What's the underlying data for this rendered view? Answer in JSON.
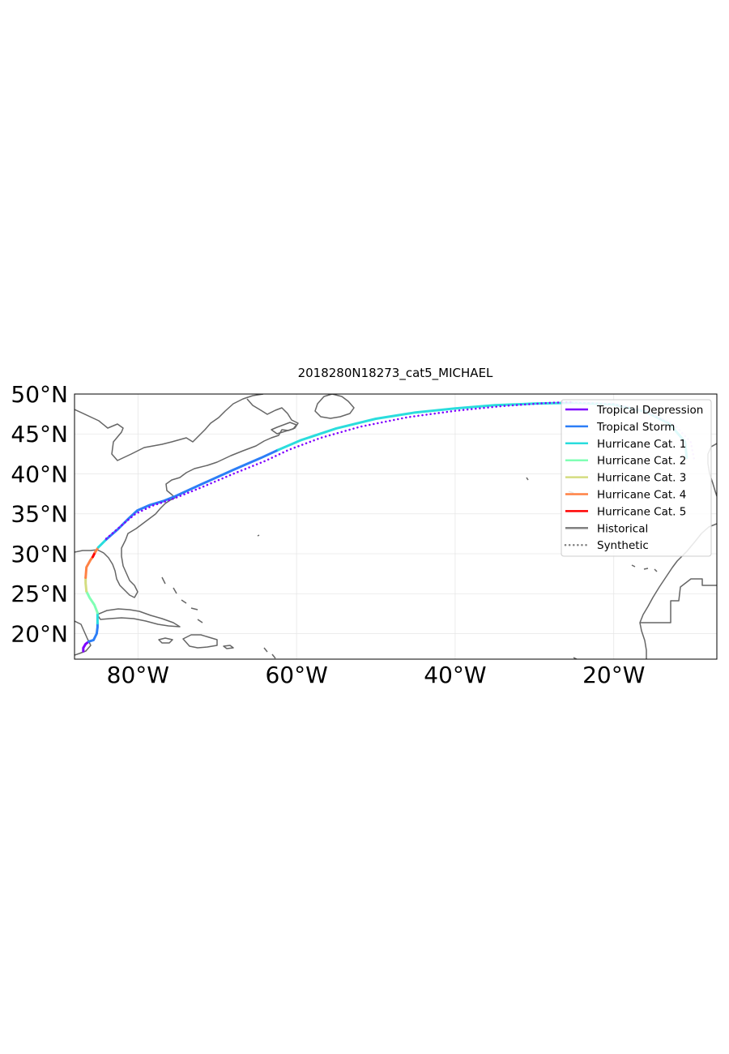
{
  "title": "2018280N18273_cat5_MICHAEL",
  "map": {
    "lon_range": [
      -88,
      -7
    ],
    "lat_range": [
      16.8,
      50
    ],
    "x_ticks": [
      {
        "lon": -80,
        "label": "80°W"
      },
      {
        "lon": -60,
        "label": "60°W"
      },
      {
        "lon": -40,
        "label": "40°W"
      },
      {
        "lon": -20,
        "label": "20°W"
      }
    ],
    "y_ticks": [
      {
        "lat": 50,
        "label": "50°N"
      },
      {
        "lat": 45,
        "label": "45°N"
      },
      {
        "lat": 40,
        "label": "40°N"
      },
      {
        "lat": 35,
        "label": "35°N"
      },
      {
        "lat": 30,
        "label": "30°N"
      },
      {
        "lat": 25,
        "label": "25°N"
      },
      {
        "lat": 20,
        "label": "20°N"
      }
    ],
    "coastline_color": "#666666",
    "grid": true
  },
  "legend": {
    "placement": "top-right",
    "entries": [
      {
        "label": "Tropical Depression",
        "color": "#7f00ff",
        "style": "solid"
      },
      {
        "label": "Tropical Storm",
        "color": "#2c7ef7",
        "style": "solid"
      },
      {
        "label": "Hurricane Cat. 1",
        "color": "#2adddd",
        "style": "solid"
      },
      {
        "label": "Hurricane Cat. 2",
        "color": "#80ffb4",
        "style": "solid"
      },
      {
        "label": "Hurricane Cat. 3",
        "color": "#d4dd80",
        "style": "solid"
      },
      {
        "label": "Hurricane Cat. 4",
        "color": "#ff8144",
        "style": "solid"
      },
      {
        "label": "Hurricane Cat. 5",
        "color": "#ff0000",
        "style": "solid"
      },
      {
        "label": "Historical",
        "color": "#808080",
        "style": "solid"
      },
      {
        "label": "Synthetic",
        "color": "#808080",
        "style": "dotted"
      }
    ]
  },
  "chart_data": {
    "type": "map-track",
    "historical_track": {
      "segments": [
        {
          "category": "Tropical Depression",
          "color": "#7f00ff",
          "points": [
            [
              -86.9,
              17.8
            ],
            [
              -86.9,
              18.2
            ],
            [
              -86.6,
              18.7
            ],
            [
              -86.2,
              19.0
            ]
          ]
        },
        {
          "category": "Tropical Storm",
          "color": "#2c7ef7",
          "points": [
            [
              -86.2,
              19.0
            ],
            [
              -85.6,
              19.2
            ],
            [
              -85.2,
              20.0
            ],
            [
              -85.1,
              20.8
            ],
            [
              -85.1,
              21.3
            ]
          ]
        },
        {
          "category": "Hurricane Cat. 1",
          "color": "#2adddd",
          "points": [
            [
              -85.1,
              21.3
            ],
            [
              -85.1,
              22.6
            ]
          ]
        },
        {
          "category": "Hurricane Cat. 2",
          "color": "#80ffb4",
          "points": [
            [
              -85.1,
              22.6
            ],
            [
              -85.5,
              23.6
            ],
            [
              -86.1,
              24.5
            ],
            [
              -86.5,
              25.3
            ]
          ]
        },
        {
          "category": "Hurricane Cat. 3",
          "color": "#d4dd80",
          "points": [
            [
              -86.5,
              25.3
            ],
            [
              -86.6,
              26.3
            ],
            [
              -86.6,
              27.0
            ]
          ]
        },
        {
          "category": "Hurricane Cat. 4",
          "color": "#ff8144",
          "points": [
            [
              -86.6,
              27.0
            ],
            [
              -86.5,
              28.3
            ],
            [
              -86.0,
              29.2
            ],
            [
              -85.7,
              29.6
            ]
          ]
        },
        {
          "category": "Hurricane Cat. 5",
          "color": "#ff0000",
          "points": [
            [
              -85.7,
              29.6
            ],
            [
              -85.4,
              30.2
            ]
          ]
        },
        {
          "category": "Hurricane Cat. 4",
          "color": "#ff8144",
          "points": [
            [
              -85.4,
              30.2
            ],
            [
              -85.0,
              30.8
            ]
          ]
        },
        {
          "category": "Hurricane Cat. 1",
          "color": "#2adddd",
          "points": [
            [
              -85.0,
              30.8
            ],
            [
              -84.0,
              31.8
            ]
          ]
        },
        {
          "category": "Tropical Storm",
          "color": "#2c7ef7",
          "points": [
            [
              -84.0,
              31.8
            ],
            [
              -82.5,
              33.1
            ],
            [
              -81.2,
              34.4
            ],
            [
              -80.1,
              35.4
            ],
            [
              -78.5,
              36.1
            ],
            [
              -76.8,
              36.6
            ],
            [
              -75.3,
              37.2
            ],
            [
              -72.0,
              38.7
            ],
            [
              -68.0,
              40.5
            ],
            [
              -64.5,
              42.0
            ],
            [
              -62.3,
              43.0
            ]
          ]
        },
        {
          "category": "Hurricane Cat. 1",
          "color": "#2adddd",
          "points": [
            [
              -62.3,
              43.0
            ],
            [
              -59.5,
              44.2
            ],
            [
              -55.0,
              45.7
            ],
            [
              -50.0,
              46.9
            ],
            [
              -45.0,
              47.7
            ],
            [
              -40.0,
              48.2
            ],
            [
              -35.0,
              48.6
            ],
            [
              -30.0,
              48.8
            ],
            [
              -25.0,
              48.9
            ],
            [
              -20.0,
              48.7
            ],
            [
              -16.0,
              47.8
            ],
            [
              -13.0,
              46.3
            ],
            [
              -11.0,
              44.0
            ],
            [
              -10.8,
              42.0
            ]
          ]
        }
      ]
    },
    "synthetic_track": {
      "style": "dotted",
      "segments": [
        {
          "category": "Tropical Depression",
          "color": "#7f00ff",
          "points": [
            [
              -84.0,
              31.9
            ],
            [
              -82.0,
              33.6
            ],
            [
              -80.3,
              35.0
            ],
            [
              -78.2,
              36.0
            ],
            [
              -75.5,
              36.9
            ],
            [
              -72.0,
              38.3
            ],
            [
              -68.0,
              40.0
            ],
            [
              -64.0,
              41.6
            ],
            [
              -61.0,
              43.0
            ],
            [
              -57.0,
              44.5
            ],
            [
              -52.0,
              45.9
            ],
            [
              -46.0,
              47.1
            ],
            [
              -40.0,
              47.9
            ],
            [
              -34.0,
              48.5
            ],
            [
              -28.0,
              48.9
            ],
            [
              -25.0,
              49.0
            ]
          ]
        },
        {
          "category": "Tropical Depression",
          "color": "#d9b3ff",
          "points": [
            [
              -25.0,
              49.0
            ],
            [
              -20.0,
              48.8
            ],
            [
              -16.0,
              47.8
            ],
            [
              -12.5,
              46.3
            ],
            [
              -10.3,
              44.0
            ],
            [
              -9.8,
              41.5
            ]
          ]
        }
      ]
    }
  }
}
